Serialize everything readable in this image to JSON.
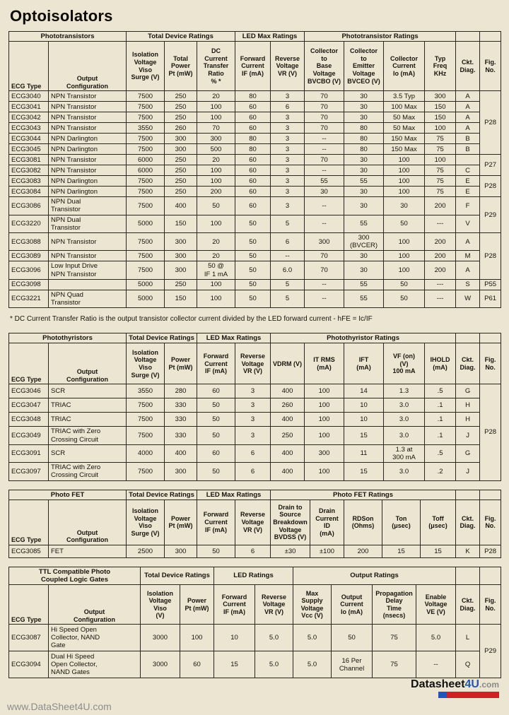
{
  "page": {
    "title": "Optoisolators",
    "footnote": "* DC Current Transfer Ratio is the output transistor collector current divided by the LED forward current - hFE = Ic/IF",
    "watermark": "www.DataSheet4U.com",
    "logo": {
      "datasheet": "Datasheet",
      "fourU": "4U",
      "com": ".com"
    }
  },
  "colors": {
    "paper": "#ece5d1",
    "logo_blue": "#2255bb",
    "logo_red": "#cc2222"
  },
  "tables": [
    {
      "id": "phototransistors",
      "groups": [
        {
          "label": "Phototransistors",
          "span": 2
        },
        {
          "label": "Total Device Ratings",
          "span": 3
        },
        {
          "label": "LED Max Ratings",
          "span": 2
        },
        {
          "label": "Phototransistor Ratings",
          "span": 4
        },
        {
          "label": "",
          "span": 1
        },
        {
          "label": "",
          "span": 1
        }
      ],
      "columns": [
        "ECG Type",
        "Output\nConfiguration",
        "Isolation\nVoltage\nViso\nSurge (V)",
        "Total\nPower\nPt (mW)",
        "DC\nCurrent\nTransfer\nRatio\n% *",
        "Forward\nCurrent\nIF (mA)",
        "Reverse\nVoltage\nVR (V)",
        "Collector\nto\nBase\nVoltage\nBVCBO (V)",
        "Collector\nto\nEmitter\nVoltage\nBVCEO (V)",
        "Collector\nCurrent\nIo (mA)",
        "Typ\nFreq\nKHz",
        "Ckt.\nDiag.",
        "Fig.\nNo."
      ],
      "rows": [
        {
          "cells": [
            "ECG3040",
            "NPN Transistor",
            "7500",
            "250",
            "20",
            "80",
            "3",
            "70",
            "30",
            "3.5 Typ",
            "300",
            "A"
          ],
          "fig": {
            "label": "P28",
            "span": 6
          }
        },
        {
          "cells": [
            "ECG3041",
            "NPN Transistor",
            "7500",
            "250",
            "100",
            "60",
            "6",
            "70",
            "30",
            "100 Max",
            "150",
            "A"
          ]
        },
        {
          "cells": [
            "ECG3042",
            "NPN Transistor",
            "7500",
            "250",
            "100",
            "60",
            "3",
            "70",
            "30",
            "50 Max",
            "150",
            "A"
          ]
        },
        {
          "cells": [
            "ECG3043",
            "NPN Transistor",
            "3550",
            "260",
            "70",
            "60",
            "3",
            "70",
            "80",
            "50 Max",
            "100",
            "A"
          ]
        },
        {
          "cells": [
            "ECG3044",
            "NPN Darlington",
            "7500",
            "300",
            "300",
            "80",
            "3",
            "--",
            "80",
            "150 Max",
            "75",
            "B"
          ]
        },
        {
          "cells": [
            "ECG3045",
            "NPN Darlington",
            "7500",
            "300",
            "500",
            "80",
            "3",
            "--",
            "80",
            "150 Max",
            "75",
            "B"
          ]
        },
        {
          "cells": [
            "ECG3081",
            "NPN Transistor",
            "6000",
            "250",
            "20",
            "60",
            "3",
            "70",
            "30",
            "100",
            "100",
            ""
          ],
          "fig": {
            "label": "P27",
            "span": 2
          }
        },
        {
          "cells": [
            "ECG3082",
            "NPN Transistor",
            "6000",
            "250",
            "100",
            "60",
            "3",
            "--",
            "30",
            "100",
            "75",
            "C"
          ]
        },
        {
          "cells": [
            "ECG3083",
            "NPN Darlington",
            "7500",
            "250",
            "100",
            "60",
            "3",
            "55",
            "55",
            "100",
            "75",
            "E"
          ],
          "fig": {
            "label": "P28",
            "span": 2
          }
        },
        {
          "cells": [
            "ECG3084",
            "NPN Darlington",
            "7500",
            "250",
            "200",
            "60",
            "3",
            "30",
            "30",
            "100",
            "75",
            "E"
          ]
        },
        {
          "cells": [
            "ECG3086",
            "NPN Dual\nTransistor",
            "7500",
            "400",
            "50",
            "60",
            "3",
            "--",
            "30",
            "30",
            "200",
            "F"
          ],
          "fig": {
            "label": "P29",
            "span": 2
          }
        },
        {
          "cells": [
            "ECG3220",
            "NPN Dual\nTransistor",
            "5000",
            "150",
            "100",
            "50",
            "5",
            "--",
            "55",
            "50",
            "---",
            "V"
          ]
        },
        {
          "cells": [
            "ECG3088",
            "NPN Transistor",
            "7500",
            "300",
            "20",
            "50",
            "6",
            "300",
            "300\n(BVCER)",
            "100",
            "200",
            "A"
          ],
          "fig": {
            "label": "P28",
            "span": 3
          }
        },
        {
          "cells": [
            "ECG3089",
            "NPN Transistor",
            "7500",
            "300",
            "20",
            "50",
            "--",
            "70",
            "30",
            "100",
            "200",
            "M"
          ]
        },
        {
          "cells": [
            "ECG3096",
            "Low Input Drive\nNPN Transistor",
            "7500",
            "300",
            "50 @\nIF 1 mA",
            "50",
            "6.0",
            "70",
            "30",
            "100",
            "200",
            "A"
          ]
        },
        {
          "cells": [
            "ECG3098",
            "",
            "5000",
            "250",
            "100",
            "50",
            "5",
            "--",
            "55",
            "50",
            "---",
            "S"
          ],
          "fig": {
            "label": "P55",
            "span": 1
          }
        },
        {
          "cells": [
            "ECG3221",
            "NPN Quad\nTransistor",
            "5000",
            "150",
            "100",
            "50",
            "5",
            "--",
            "55",
            "50",
            "---",
            "W"
          ],
          "fig": {
            "label": "P61",
            "span": 1
          }
        }
      ]
    },
    {
      "id": "photothyristors",
      "groups": [
        {
          "label": "Photothyristors",
          "span": 2
        },
        {
          "label": "Total Device Ratings",
          "span": 2
        },
        {
          "label": "LED Max Ratings",
          "span": 2
        },
        {
          "label": "Photothyristor Ratings",
          "span": 5
        },
        {
          "label": "",
          "span": 1
        },
        {
          "label": "",
          "span": 1
        }
      ],
      "columns": [
        "ECG Type",
        "Output\nConfiguration",
        "Isolation\nVoltage\nViso\nSurge (V)",
        "Power\nPt (mW)",
        "Forward\nCurrent\nIF (mA)",
        "Reverse\nVoltage\nVR (V)",
        "VDRM (V)",
        "IT RMS\n(mA)",
        "IFT\n(mA)",
        "VF (on)\n(V)\n100 mA",
        "IHOLD\n(mA)",
        "Ckt.\nDiag.",
        "Fig.\nNo."
      ],
      "rows": [
        {
          "cells": [
            "ECG3046",
            "SCR",
            "3550",
            "280",
            "60",
            "3",
            "400",
            "100",
            "14",
            "1.3",
            ".5",
            "G"
          ],
          "fig": {
            "label": "P28",
            "span": 6
          }
        },
        {
          "cells": [
            "ECG3047",
            "TRIAC",
            "7500",
            "330",
            "50",
            "3",
            "260",
            "100",
            "10",
            "3.0",
            ".1",
            "H"
          ]
        },
        {
          "cells": [
            "ECG3048",
            "TRIAC",
            "7500",
            "330",
            "50",
            "3",
            "400",
            "100",
            "10",
            "3.0",
            ".1",
            "H"
          ]
        },
        {
          "cells": [
            "ECG3049",
            "TRIAC with Zero\nCrossing Circuit",
            "7500",
            "330",
            "50",
            "3",
            "250",
            "100",
            "15",
            "3.0",
            ".1",
            "J"
          ]
        },
        {
          "cells": [
            "ECG3091",
            "SCR",
            "4000",
            "400",
            "60",
            "6",
            "400",
            "300",
            "11",
            "1.3 at\n300 mA",
            ".5",
            "G"
          ]
        },
        {
          "cells": [
            "ECG3097",
            "TRIAC with Zero\nCrossing Circuit",
            "7500",
            "300",
            "50",
            "6",
            "400",
            "100",
            "15",
            "3.0",
            ".2",
            "J"
          ]
        }
      ]
    },
    {
      "id": "photofet",
      "groups": [
        {
          "label": "Photo FET",
          "span": 2
        },
        {
          "label": "Total Device Ratings",
          "span": 2
        },
        {
          "label": "LED Max Ratings",
          "span": 2
        },
        {
          "label": "Photo FET Ratings",
          "span": 5
        },
        {
          "label": "",
          "span": 1
        },
        {
          "label": "",
          "span": 1
        }
      ],
      "columns": [
        "ECG Type",
        "Output\nConfiguration",
        "Isolation\nVoltage\nViso\nSurge (V)",
        "Power\nPt (mW)",
        "Forward\nCurrent\nIF (mA)",
        "Reverse\nVoltage\nVR (V)",
        "Drain to\nSource\nBreakdown\nVoltage\nBVDSS (V)",
        "Drain\nCurrent\nID\n(mA)",
        "RDSon\n(Ohms)",
        "Ton\n(μsec)",
        "Toff\n(μsec)",
        "Ckt.\nDiag.",
        "Fig.\nNo."
      ],
      "rows": [
        {
          "cells": [
            "ECG3085",
            "FET",
            "2500",
            "300",
            "50",
            "6",
            "±30",
            "±100",
            "200",
            "15",
            "15",
            "K"
          ],
          "fig": {
            "label": "P28",
            "span": 1
          }
        }
      ]
    },
    {
      "id": "ttl",
      "groups": [
        {
          "label": "TTL Compatible Photo\nCoupled Logic Gates",
          "span": 2
        },
        {
          "label": "Total Device Ratings",
          "span": 2
        },
        {
          "label": "LED Ratings",
          "span": 2
        },
        {
          "label": "Output Ratings",
          "span": 4
        },
        {
          "label": "",
          "span": 1
        },
        {
          "label": "",
          "span": 1
        }
      ],
      "columns": [
        "ECG Type",
        "Output\nConfiguration",
        "Isolation\nVoltage\nViso\n(V)",
        "Power\nPt (mW)",
        "Forward\nCurrent\nIF (mA)",
        "Reverse\nVoltage\nVR (V)",
        "Max\nSupply\nVoltage\nVcc (V)",
        "Output\nCurrent\nIo (mA)",
        "Propagation\nDelay\nTime\n(nsecs)",
        "Enable\nVoltage\nVE (V)",
        "Ckt.\nDiag.",
        "Fig.\nNo."
      ],
      "rows": [
        {
          "cells": [
            "ECG3087",
            "Hi Speed Open\nCollector, NAND\nGate",
            "3000",
            "100",
            "10",
            "5.0",
            "5.0",
            "50",
            "75",
            "5.0",
            "L"
          ],
          "fig": {
            "label": "P29",
            "span": 2
          }
        },
        {
          "cells": [
            "ECG3094",
            "Dual Hi Speed\nOpen Collector,\nNAND Gates",
            "3000",
            "60",
            "15",
            "5.0",
            "5.0",
            "16 Per\nChannel",
            "75",
            "--",
            "Q"
          ]
        }
      ]
    }
  ]
}
